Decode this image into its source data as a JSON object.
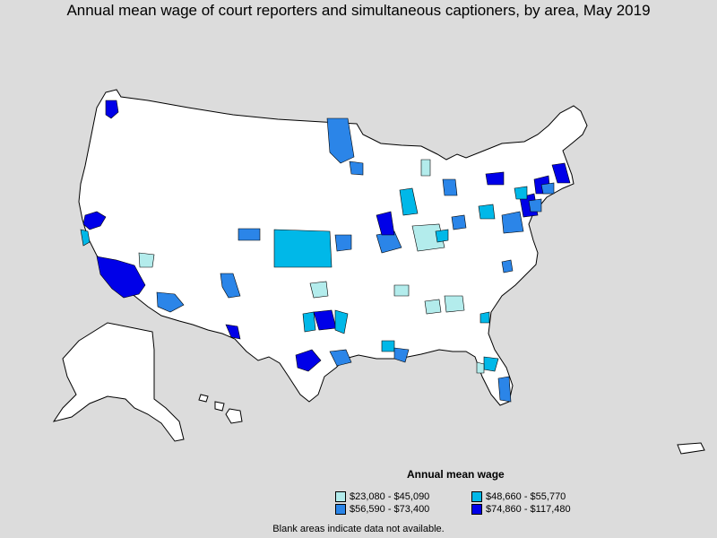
{
  "title": "Annual mean wage of court reporters and simultaneous captioners, by area, May 2019",
  "legend": {
    "title": "Annual mean wage",
    "items": [
      {
        "label": "$23,080 - $45,090",
        "color": "#b3ecec"
      },
      {
        "label": "$48,660 - $55,770",
        "color": "#00b8e8"
      },
      {
        "label": "$56,590 - $73,400",
        "color": "#2b85e8"
      },
      {
        "label": "$74,860 - $117,480",
        "color": "#0000e8"
      }
    ]
  },
  "footnote": "Blank areas indicate data not available.",
  "colors": {
    "background": "#dcdcdc",
    "land": "#ffffff",
    "border": "#000000"
  }
}
